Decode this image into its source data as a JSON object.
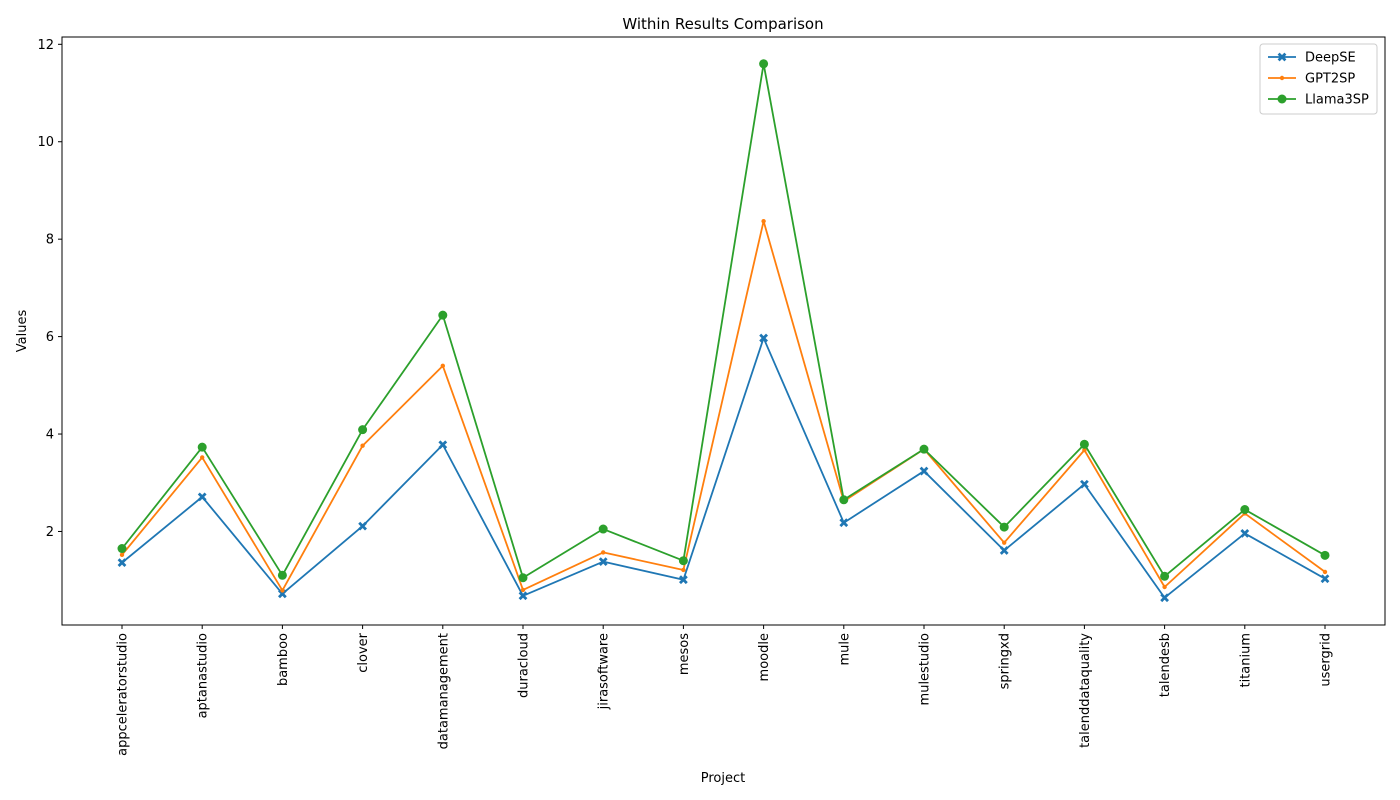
{
  "chart_data": {
    "type": "line",
    "title": "Within Results Comparison",
    "xlabel": "Project",
    "ylabel": "Values",
    "categories": [
      "appceleratorstudio",
      "aptanastudio",
      "bamboo",
      "clover",
      "datamanagement",
      "duracloud",
      "jirasoftware",
      "mesos",
      "moodle",
      "mule",
      "mulestudio",
      "springxd",
      "talenddataquality",
      "talendesb",
      "titanium",
      "usergrid"
    ],
    "ylim": [
      0.08,
      12.15
    ],
    "yticks": [
      2,
      4,
      6,
      8,
      10,
      12
    ],
    "grid": false,
    "legend_position": "top-right",
    "series": [
      {
        "name": "DeepSE",
        "color": "#1f77b4",
        "marker": "x-filled",
        "values": [
          1.36,
          2.71,
          0.72,
          2.11,
          3.78,
          0.68,
          1.38,
          1.01,
          5.97,
          2.18,
          3.24,
          1.61,
          2.97,
          0.64,
          1.96,
          1.03
        ]
      },
      {
        "name": "GPT2SP",
        "color": "#ff7f0e",
        "marker": "point",
        "values": [
          1.52,
          3.52,
          0.79,
          3.76,
          5.4,
          0.8,
          1.57,
          1.21,
          8.37,
          2.62,
          3.69,
          1.77,
          3.67,
          0.86,
          2.37,
          1.17
        ]
      },
      {
        "name": "Llama3SP",
        "color": "#2ca02c",
        "marker": "circle",
        "values": [
          1.65,
          3.73,
          1.1,
          4.09,
          6.44,
          1.05,
          2.05,
          1.4,
          11.6,
          2.65,
          3.69,
          2.09,
          3.79,
          1.08,
          2.45,
          1.51
        ]
      }
    ]
  }
}
